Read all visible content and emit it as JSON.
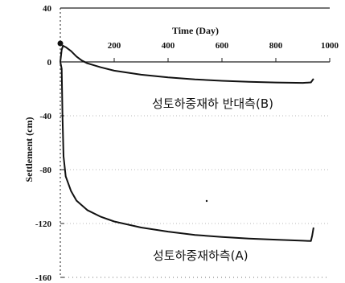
{
  "chart_data": {
    "type": "line",
    "xlabel": "Time (Day)",
    "ylabel": "Settlement (cm)",
    "xlim": [
      0,
      1000
    ],
    "ylim": [
      -160,
      40
    ],
    "x_ticks": [
      200,
      400,
      600,
      800,
      1000
    ],
    "y_ticks": [
      40,
      0,
      -40,
      -80,
      -120,
      -160
    ],
    "x_axis_position": "top (at y = 0)",
    "series": [
      {
        "name": "성토하중재하 반대측(B)",
        "color": "#111111",
        "points": [
          [
            0,
            0
          ],
          [
            5,
            9
          ],
          [
            10,
            12
          ],
          [
            20,
            11
          ],
          [
            40,
            8
          ],
          [
            60,
            4
          ],
          [
            80,
            1
          ],
          [
            100,
            -1
          ],
          [
            150,
            -4
          ],
          [
            200,
            -6.5
          ],
          [
            300,
            -9.5
          ],
          [
            400,
            -11.5
          ],
          [
            500,
            -13
          ],
          [
            600,
            -14
          ],
          [
            700,
            -14.8
          ],
          [
            800,
            -15.3
          ],
          [
            900,
            -15.6
          ],
          [
            930,
            -15.2
          ],
          [
            940,
            -12.5
          ]
        ]
      },
      {
        "name": "성토하중재하측(A)",
        "color": "#111111",
        "points": [
          [
            0,
            0
          ],
          [
            5,
            -5
          ],
          [
            8,
            -40
          ],
          [
            12,
            -70
          ],
          [
            20,
            -85
          ],
          [
            40,
            -96
          ],
          [
            60,
            -103
          ],
          [
            100,
            -110
          ],
          [
            150,
            -115
          ],
          [
            200,
            -118.5
          ],
          [
            300,
            -123
          ],
          [
            400,
            -126
          ],
          [
            500,
            -128.5
          ],
          [
            600,
            -130
          ],
          [
            700,
            -131.2
          ],
          [
            800,
            -132
          ],
          [
            900,
            -132.8
          ],
          [
            930,
            -133
          ],
          [
            935,
            -129
          ],
          [
            940,
            -123
          ]
        ]
      }
    ]
  }
}
